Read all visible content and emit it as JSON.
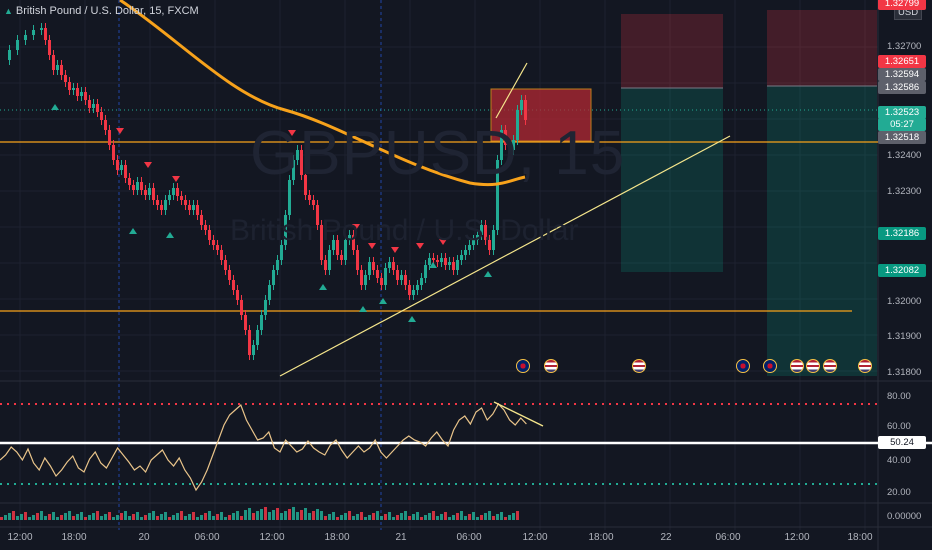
{
  "header": {
    "title": "British Pound / U.S. Dollar, 15, FXCM"
  },
  "watermark": {
    "symbol": "GBPUSD, 15",
    "name": "British Pound / U.S. Dollar"
  },
  "price_axis": {
    "currency": "USD",
    "ticks": [
      "1.32700",
      "1.32400",
      "1.32300",
      "1.32000",
      "1.31900",
      "1.31800"
    ],
    "labels": [
      {
        "text": "1.32799",
        "color": "#f23645"
      },
      {
        "text": "1.32651",
        "color": "#f23645"
      },
      {
        "text": "1.32594",
        "color": "#5d606b"
      },
      {
        "text": "1.32586",
        "color": "#5d606b"
      },
      {
        "text": "1.32523",
        "color": "#22ab94"
      },
      {
        "text": "05:27",
        "color": "#22ab94"
      },
      {
        "text": "1.32518",
        "color": "#5d606b"
      },
      {
        "text": "1.32186",
        "color": "#089981"
      },
      {
        "text": "1.32082",
        "color": "#089981"
      }
    ]
  },
  "rsi_axis": {
    "ticks": [
      "80.00",
      "60.00",
      "40.00",
      "20.00"
    ],
    "value_label": "50.24"
  },
  "volume_axis": {
    "ticks": [
      "0.00000"
    ]
  },
  "time_axis": {
    "ticks": [
      "12:00",
      "18:00",
      "20",
      "06:00",
      "12:00",
      "18:00",
      "21",
      "06:00",
      "12:00",
      "18:00",
      "22",
      "06:00",
      "12:00",
      "18:00"
    ]
  },
  "events": [
    {
      "flag": "uk",
      "icon": "flag-uk-icon"
    },
    {
      "flag": "us",
      "icon": "flag-us-icon"
    },
    {
      "flag": "us",
      "icon": "flag-us-icon"
    },
    {
      "flag": "uk",
      "icon": "flag-uk-icon"
    },
    {
      "flag": "uk",
      "icon": "flag-uk-icon"
    },
    {
      "flag": "us",
      "icon": "flag-us-icon"
    },
    {
      "flag": "us",
      "icon": "flag-us-icon"
    },
    {
      "flag": "us",
      "icon": "flag-us-icon"
    },
    {
      "flag": "us",
      "icon": "flag-us-icon"
    }
  ],
  "colors": {
    "background": "#131722",
    "up": "#22ab94",
    "down": "#f23645",
    "ma": "#f7a21b",
    "horizontal_line": "#f7a21b",
    "trendline": "#f5e68c",
    "rsi": "#e9c48a"
  }
}
